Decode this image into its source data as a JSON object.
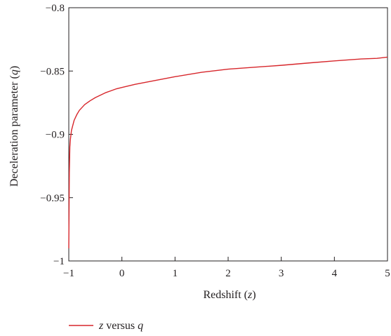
{
  "chart_data": {
    "type": "line",
    "title": "",
    "xlabel": "Redshift (",
    "xlabel_var": "z",
    "xlabel_close": ")",
    "ylabel": "Deceleration parameter (",
    "ylabel_var": "q",
    "ylabel_close": ")",
    "xlim": [
      -1,
      5
    ],
    "ylim": [
      -1,
      -0.8
    ],
    "xticks": [
      -1,
      0,
      1,
      2,
      3,
      4,
      5
    ],
    "xtick_labels": [
      "−1",
      "0",
      "1",
      "2",
      "3",
      "4",
      "5"
    ],
    "yticks": [
      -1,
      -0.95,
      -0.9,
      -0.85,
      -0.8
    ],
    "ytick_labels": [
      "−1",
      "−0.95",
      "−0.9",
      "−0.85",
      "−0.8"
    ],
    "grid": false,
    "legend_position": "bottom-center",
    "series": [
      {
        "legend_var1": "z",
        "legend_mid": " versus ",
        "legend_var2": "q",
        "color": "#d7262b",
        "x": [
          -1.0,
          -0.995,
          -0.99,
          -0.98,
          -0.97,
          -0.95,
          -0.9,
          -0.85,
          -0.8,
          -0.7,
          -0.6,
          -0.5,
          -0.4,
          -0.3,
          -0.2,
          -0.1,
          0.0,
          0.25,
          0.5,
          0.75,
          1.0,
          1.5,
          2.0,
          2.5,
          3.0,
          3.5,
          4.0,
          4.5,
          4.8,
          5.0
        ],
        "y": [
          -0.99,
          -0.96,
          -0.93,
          -0.91,
          -0.904,
          -0.897,
          -0.889,
          -0.8845,
          -0.881,
          -0.8765,
          -0.8735,
          -0.871,
          -0.869,
          -0.867,
          -0.8655,
          -0.864,
          -0.863,
          -0.8605,
          -0.8585,
          -0.8565,
          -0.8545,
          -0.851,
          -0.8485,
          -0.847,
          -0.8455,
          -0.8437,
          -0.842,
          -0.8405,
          -0.84,
          -0.839
        ]
      }
    ]
  }
}
